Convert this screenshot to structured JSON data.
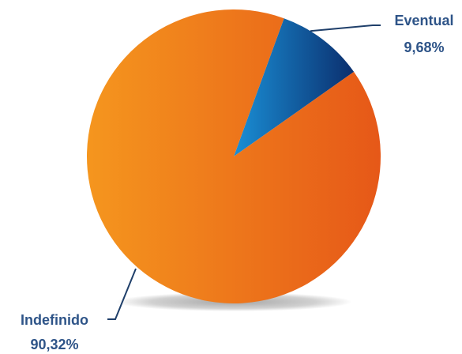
{
  "chart_data": {
    "type": "pie",
    "title": "",
    "slices": [
      {
        "label": "Eventual",
        "value": 9.68,
        "value_label": "9,68%",
        "color_start": "#1a8fd6",
        "color_end": "#0b2f6e"
      },
      {
        "label": "Indefinido",
        "value": 90.32,
        "value_label": "90,32%",
        "color_start": "#f5961e",
        "color_end": "#e65818"
      }
    ],
    "label_color": "#2e5488",
    "leader_color": "#1f3f6a",
    "start_angle_deg": 20,
    "direction": "clockwise",
    "legend": "none"
  }
}
